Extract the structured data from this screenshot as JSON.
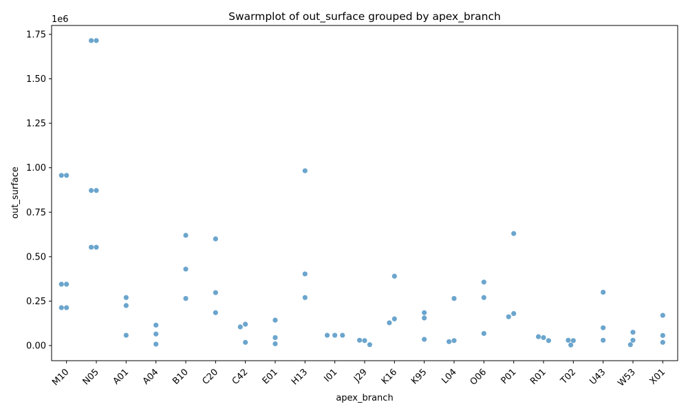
{
  "chart_data": {
    "type": "scatter",
    "subtype": "swarmplot",
    "title": "Swarmplot of out_surface grouped by apex_branch",
    "xlabel": "apex_branch",
    "ylabel": "out_surface",
    "y_offset_label": "1e6",
    "ylim": [
      -85000,
      1800000
    ],
    "yticks": [
      0,
      250000,
      500000,
      750000,
      1000000,
      1250000,
      1500000,
      1750000
    ],
    "ytick_labels": [
      "0.00",
      "0.25",
      "0.50",
      "0.75",
      "1.00",
      "1.25",
      "1.50",
      "1.75"
    ],
    "categories": [
      "M10",
      "N05",
      "A01",
      "A04",
      "B10",
      "C20",
      "C42",
      "E01",
      "H13",
      "I01",
      "J29",
      "K16",
      "K95",
      "L04",
      "O06",
      "P01",
      "R01",
      "T02",
      "U43",
      "W53",
      "X01"
    ],
    "point_color": "#5b9bc8",
    "groups": [
      {
        "category": "M10",
        "values": [
          957000,
          957000,
          345000,
          345000,
          213000,
          213000
        ]
      },
      {
        "category": "N05",
        "values": [
          1715000,
          1715000,
          872000,
          872000,
          553000,
          553000
        ]
      },
      {
        "category": "A01",
        "values": [
          270000,
          225000,
          58000
        ]
      },
      {
        "category": "A04",
        "values": [
          115000,
          65000,
          8000
        ]
      },
      {
        "category": "B10",
        "values": [
          620000,
          430000,
          265000
        ]
      },
      {
        "category": "C20",
        "values": [
          600000,
          298000,
          185000
        ]
      },
      {
        "category": "C42",
        "values": [
          120000,
          105000,
          18000
        ]
      },
      {
        "category": "E01",
        "values": [
          143000,
          45000,
          10000
        ]
      },
      {
        "category": "H13",
        "values": [
          983000,
          403000,
          270000
        ]
      },
      {
        "category": "I01",
        "values": [
          58000,
          58000,
          58000
        ]
      },
      {
        "category": "J29",
        "values": [
          28000,
          30000,
          5000
        ]
      },
      {
        "category": "K16",
        "values": [
          390000,
          150000,
          128000
        ]
      },
      {
        "category": "K95",
        "values": [
          185000,
          155000,
          35000
        ]
      },
      {
        "category": "L04",
        "values": [
          265000,
          28000,
          22000
        ]
      },
      {
        "category": "O06",
        "values": [
          357000,
          270000,
          68000
        ]
      },
      {
        "category": "P01",
        "values": [
          630000,
          180000,
          162000
        ]
      },
      {
        "category": "R01",
        "values": [
          45000,
          50000,
          28000
        ]
      },
      {
        "category": "T02",
        "values": [
          28000,
          30000,
          3000
        ]
      },
      {
        "category": "U43",
        "values": [
          300000,
          100000,
          30000
        ]
      },
      {
        "category": "W53",
        "values": [
          75000,
          30000,
          5000
        ]
      },
      {
        "category": "X01",
        "values": [
          170000,
          57000,
          18000
        ]
      }
    ]
  }
}
